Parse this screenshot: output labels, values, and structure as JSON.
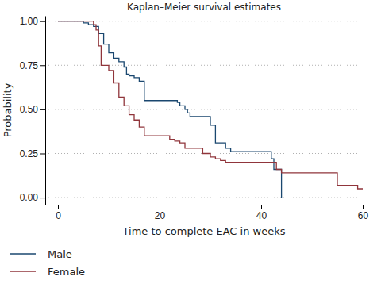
{
  "chart_data": {
    "type": "line",
    "title": "Kaplan–Meier survival estimates",
    "x_label": "Time to complete EAC in weeks",
    "y_label": "Probability",
    "line_style": "step",
    "grid": true,
    "legend": "bottom",
    "xlim": [
      -2.5,
      60
    ],
    "ylim": [
      -0.04,
      1.03
    ],
    "xticks": [
      0,
      20,
      40,
      60
    ],
    "yticks": [
      {
        "value": 0,
        "label": "0.00"
      },
      {
        "value": 0.25,
        "label": "0.25"
      },
      {
        "value": 0.5,
        "label": "0.50"
      },
      {
        "value": 0.75,
        "label": "0.75"
      },
      {
        "value": 1,
        "label": "1.00"
      }
    ],
    "series": [
      {
        "name": "Male",
        "color": "#1a476f",
        "x": [
          0,
          5,
          6,
          7,
          8,
          9,
          10,
          11,
          12,
          13,
          13.5,
          14,
          15,
          16,
          17,
          23.5,
          24,
          25,
          25.5,
          26,
          30,
          31,
          33,
          34,
          42,
          42.5,
          44
        ],
        "values": [
          1,
          0.99,
          0.98,
          0.97,
          0.93,
          0.87,
          0.82,
          0.79,
          0.77,
          0.74,
          0.7,
          0.69,
          0.68,
          0.66,
          0.55,
          0.54,
          0.52,
          0.5,
          0.48,
          0.46,
          0.41,
          0.31,
          0.28,
          0.26,
          0.22,
          0.16,
          0
        ]
      },
      {
        "name": "Female",
        "color": "#90353b",
        "x": [
          0,
          7,
          7.5,
          8,
          8.5,
          10,
          11,
          12,
          13,
          14,
          15,
          16,
          17,
          22,
          23,
          24,
          25,
          28.5,
          30,
          31,
          32,
          33,
          43,
          44,
          55,
          59,
          60
        ],
        "values": [
          1,
          0.98,
          0.95,
          0.86,
          0.75,
          0.72,
          0.65,
          0.57,
          0.52,
          0.47,
          0.44,
          0.4,
          0.35,
          0.33,
          0.32,
          0.31,
          0.28,
          0.25,
          0.23,
          0.22,
          0.21,
          0.2,
          0.16,
          0.14,
          0.07,
          0.05,
          0.05
        ]
      }
    ]
  }
}
